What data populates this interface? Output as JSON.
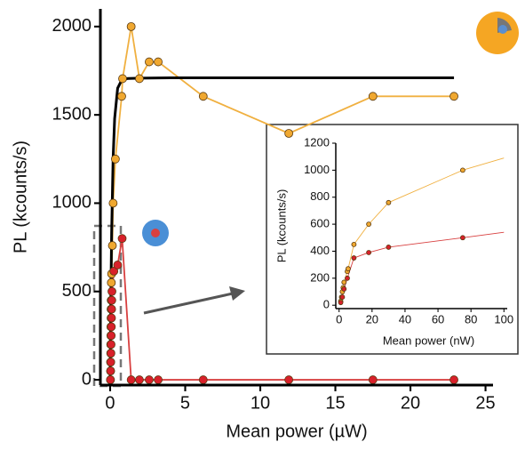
{
  "chart_data": [
    {
      "type": "line",
      "xlabel": "Mean power (µW)",
      "ylabel": "PL (kcounts/s)",
      "xlim": [
        -0.65,
        25.5
      ],
      "xticks": [
        0,
        5,
        10,
        15,
        20,
        25
      ],
      "ylim": [
        -30,
        2100
      ],
      "yticks": [
        0,
        500,
        1000,
        1500,
        2000
      ],
      "series": [
        {
          "color": "#f0a830",
          "line_color": "#f0b040",
          "marker": true,
          "x": [
            0.02,
            0.03,
            0.03,
            0.04,
            0.04,
            0.05,
            0.05,
            0.06,
            0.06,
            0.07,
            0.08,
            0.1,
            0.15,
            0.2,
            0.35,
            0.77,
            0.83,
            1.4,
            1.95,
            2.6,
            3.2,
            6.2,
            11.9,
            17.5,
            22.9
          ],
          "values": [
            0,
            50,
            100,
            150,
            200,
            250,
            300,
            350,
            400,
            450,
            550,
            600,
            760,
            1000,
            1250,
            1605,
            1705,
            2000,
            1705,
            1800,
            1800,
            1605,
            1395,
            1605,
            1605
          ]
        },
        {
          "color": "#d8202a",
          "line_color": "#d84040",
          "marker": true,
          "x": [
            0.02,
            0.03,
            0.04,
            0.05,
            0.06,
            0.07,
            0.08,
            0.09,
            0.1,
            0.11,
            0.12,
            0.25,
            0.5,
            0.8,
            1.4,
            1.95,
            2.6,
            3.2,
            6.2,
            11.9,
            17.5,
            22.9
          ],
          "values": [
            0,
            50,
            100,
            150,
            200,
            250,
            300,
            350,
            400,
            450,
            500,
            615,
            650,
            800,
            0,
            0,
            0,
            0,
            0,
            0,
            0,
            0
          ]
        },
        {
          "color": "#000000",
          "line_color": "#000000",
          "marker": false,
          "width": 3,
          "x": [
            0,
            0.05,
            0.1,
            0.2,
            0.3,
            0.5,
            0.8,
            1.2,
            2,
            4,
            8,
            15,
            22.9
          ],
          "values": [
            0,
            485,
            832,
            1260,
            1479,
            1651,
            1702,
            1706,
            1708,
            1710,
            1710,
            1710,
            1710
          ]
        }
      ]
    },
    {
      "type": "line",
      "xlabel": "Mean power (nW)",
      "ylabel": "PL (kcounts/s)",
      "xlim": [
        -2,
        102
      ],
      "xticks": [
        0,
        20,
        40,
        60,
        80,
        100
      ],
      "ylim": [
        -25,
        1200
      ],
      "yticks": [
        0,
        200,
        400,
        600,
        800,
        1000,
        1200
      ],
      "series": [
        {
          "color": "#f0a830",
          "line_color": "#f0b040",
          "marker": true,
          "x": [
            1,
            1.5,
            2,
            2.5,
            3,
            5,
            5.5,
            9,
            18,
            30,
            75
          ],
          "values": [
            30,
            60,
            100,
            130,
            170,
            250,
            270,
            450,
            600,
            760,
            1000
          ]
        },
        {
          "color": "#d8202a",
          "line_color": "#d84040",
          "marker": true,
          "x": [
            1,
            2,
            3,
            5,
            9,
            18,
            30,
            75
          ],
          "values": [
            20,
            60,
            120,
            200,
            350,
            390,
            430,
            500
          ]
        },
        {
          "color": "#f0a830",
          "line_color": "#f0b040",
          "marker": false,
          "x": [
            75,
            100
          ],
          "values": [
            1000,
            1090
          ]
        },
        {
          "color": "#d8202a",
          "line_color": "#d84040",
          "marker": false,
          "x": [
            75,
            100
          ],
          "values": [
            500,
            540
          ]
        }
      ]
    }
  ]
}
